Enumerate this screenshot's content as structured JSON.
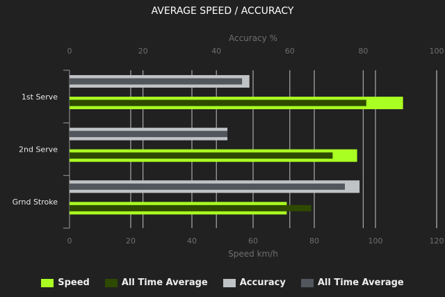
{
  "chart_data": {
    "type": "bar",
    "orientation": "horizontal",
    "title": "AVERAGE SPEED / ACCURACY",
    "categories": [
      "1st Serve",
      "2nd Serve",
      "Grnd Stroke"
    ],
    "x_axis_bottom": {
      "label": "Speed km/h",
      "range": [
        0,
        120
      ],
      "ticks": [
        0,
        20,
        40,
        60,
        80,
        100,
        120
      ]
    },
    "x_axis_top": {
      "label": "Accuracy %",
      "range": [
        0,
        100
      ],
      "ticks": [
        0,
        20,
        40,
        60,
        80,
        100
      ]
    },
    "grid": true,
    "legend_position": "bottom",
    "series": [
      {
        "name": "Speed",
        "axis": "speed",
        "color": "#aaff22",
        "values": [
          109,
          94,
          71
        ]
      },
      {
        "name": "All Time Average",
        "axis": "speed",
        "color": "#2e4a00",
        "values": [
          97,
          86,
          79
        ]
      },
      {
        "name": "Accuracy",
        "axis": "accuracy",
        "color": "#c0c3c5",
        "values": [
          49,
          43,
          79
        ]
      },
      {
        "name": "All Time Average",
        "axis": "accuracy",
        "color": "#52575d",
        "values": [
          47,
          43,
          75
        ]
      }
    ]
  }
}
